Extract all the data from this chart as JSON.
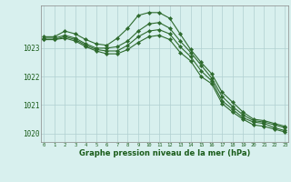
{
  "x": [
    0,
    1,
    2,
    3,
    4,
    5,
    6,
    7,
    8,
    9,
    10,
    11,
    12,
    13,
    14,
    15,
    16,
    17,
    18,
    19,
    20,
    21,
    22,
    23
  ],
  "line1": [
    1023.4,
    1023.4,
    1023.6,
    1023.5,
    1023.3,
    1023.15,
    1023.1,
    1023.35,
    1023.7,
    1024.15,
    1024.25,
    1024.25,
    1024.05,
    1023.5,
    1022.95,
    1022.5,
    1022.1,
    1021.45,
    1021.1,
    1020.75,
    1020.5,
    1020.45,
    1020.35,
    1020.25
  ],
  "line2": [
    1023.35,
    1023.35,
    1023.45,
    1023.35,
    1023.15,
    1023.0,
    1023.0,
    1023.05,
    1023.25,
    1023.6,
    1023.85,
    1023.9,
    1023.7,
    1023.25,
    1022.85,
    1022.4,
    1021.95,
    1021.3,
    1020.95,
    1020.65,
    1020.45,
    1020.4,
    1020.3,
    1020.2
  ],
  "line3": [
    1023.3,
    1023.3,
    1023.4,
    1023.3,
    1023.1,
    1022.95,
    1022.9,
    1022.9,
    1023.1,
    1023.4,
    1023.6,
    1023.65,
    1023.5,
    1023.05,
    1022.7,
    1022.2,
    1021.85,
    1021.15,
    1020.85,
    1020.55,
    1020.4,
    1020.35,
    1020.2,
    1020.1
  ],
  "line4": [
    1023.3,
    1023.3,
    1023.35,
    1023.25,
    1023.05,
    1022.9,
    1022.8,
    1022.8,
    1022.95,
    1023.2,
    1023.4,
    1023.45,
    1023.3,
    1022.85,
    1022.55,
    1022.0,
    1021.75,
    1021.05,
    1020.75,
    1020.5,
    1020.3,
    1020.25,
    1020.15,
    1020.05
  ],
  "line_color": "#2d6a2d",
  "bg_color": "#d8f0ee",
  "grid_color": "#b0d0d0",
  "text_color": "#1a5c1a",
  "xlabel": "Graphe pression niveau de la mer (hPa)",
  "ylim": [
    1019.7,
    1024.5
  ],
  "yticks": [
    1020,
    1021,
    1022,
    1023
  ],
  "xticks": [
    0,
    1,
    2,
    3,
    4,
    5,
    6,
    7,
    8,
    9,
    10,
    11,
    12,
    13,
    14,
    15,
    16,
    17,
    18,
    19,
    20,
    21,
    22,
    23
  ],
  "markersize": 2.2,
  "linewidth": 0.8
}
